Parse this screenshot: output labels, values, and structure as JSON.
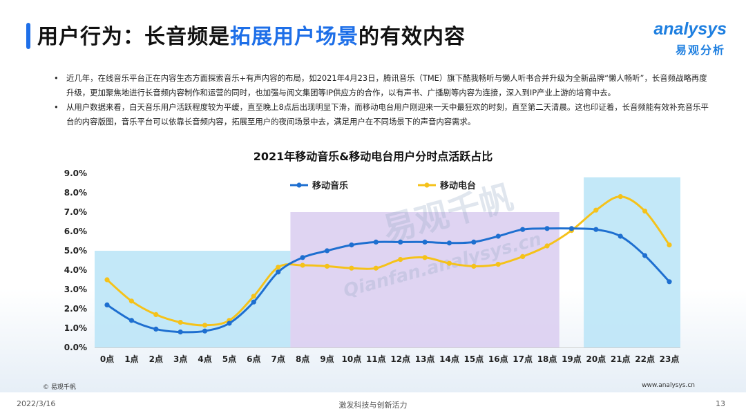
{
  "header": {
    "title_prefix": "用户行为：长音频是",
    "title_highlight": "拓展用户场景",
    "title_suffix": "的有效内容",
    "logo_word": "analysys",
    "logo_cn": "易观分析"
  },
  "bullets": [
    "近几年，在线音乐平台正在内容生态方面探索音乐+有声内容的布局，如2021年4月23日，腾讯音乐（TME）旗下酷我畅听与懒人听书合并升级为全新品牌“懒人畅听”，长音频战略再度升级，更加聚焦地进行长音频内容制作和运营的同时，也加强与阅文集团等IP供应方的合作，以有声书、广播剧等内容为连接，深入到IP产业上游的培育中去。",
    "从用户数据来看，白天音乐用户活跃程度较为平缓，直至晚上8点后出现明显下滑，而移动电台用户刚迎来一天中最狂欢的时刻，直至第二天清晨。这也印证着，长音频能有效补充音乐平台的内容版图，音乐平台可以依靠长音频内容，拓展至用户的夜间场景中去，满足用户在不同场景下的声音内容需求。"
  ],
  "watermark": {
    "cn": "易观千帆",
    "en": "Qianfan.analysys.cn"
  },
  "chart_data": {
    "type": "line",
    "title": "2021年移动音乐&移动电台用户分时点活跃占比",
    "categories": [
      "0点",
      "1点",
      "2点",
      "3点",
      "4点",
      "5点",
      "6点",
      "7点",
      "8点",
      "9点",
      "10点",
      "11点",
      "12点",
      "13点",
      "14点",
      "15点",
      "16点",
      "17点",
      "18点",
      "19点",
      "20点",
      "21点",
      "22点",
      "23点"
    ],
    "y_ticks": [
      "0.0%",
      "1.0%",
      "2.0%",
      "3.0%",
      "4.0%",
      "5.0%",
      "6.0%",
      "7.0%",
      "8.0%",
      "9.0%"
    ],
    "ylim": [
      0,
      9
    ],
    "grid": false,
    "legend_position": "top-left",
    "series": [
      {
        "name": "移动音乐",
        "color": "#1e6fd0",
        "values": [
          2.2,
          1.4,
          0.95,
          0.8,
          0.85,
          1.25,
          2.35,
          3.9,
          4.65,
          5.0,
          5.3,
          5.45,
          5.45,
          5.45,
          5.4,
          5.45,
          5.75,
          6.1,
          6.15,
          6.15,
          6.1,
          5.75,
          4.75,
          3.4
        ]
      },
      {
        "name": "移动电台",
        "color": "#f5c21a",
        "values": [
          3.5,
          2.4,
          1.7,
          1.3,
          1.15,
          1.4,
          2.65,
          4.15,
          4.25,
          4.2,
          4.1,
          4.1,
          4.55,
          4.65,
          4.35,
          4.2,
          4.3,
          4.7,
          5.25,
          6.05,
          7.1,
          7.8,
          7.05,
          5.3
        ]
      }
    ],
    "highlight_bands": [
      {
        "from_hour": 0,
        "to_hour": 7,
        "top": 5.0,
        "color": "#b8e4f7"
      },
      {
        "from_hour": 8,
        "to_hour": 18,
        "top": 7.0,
        "color": "#d9ccf0"
      },
      {
        "from_hour": 20,
        "to_hour": 23,
        "top": 8.8,
        "color": "#b8e4f7"
      }
    ]
  },
  "footer": {
    "source": "© 易观千帆",
    "website": "www.analysys.cn",
    "date": "2022/3/16",
    "slogan": "激发科技与创新活力",
    "page": "13"
  }
}
